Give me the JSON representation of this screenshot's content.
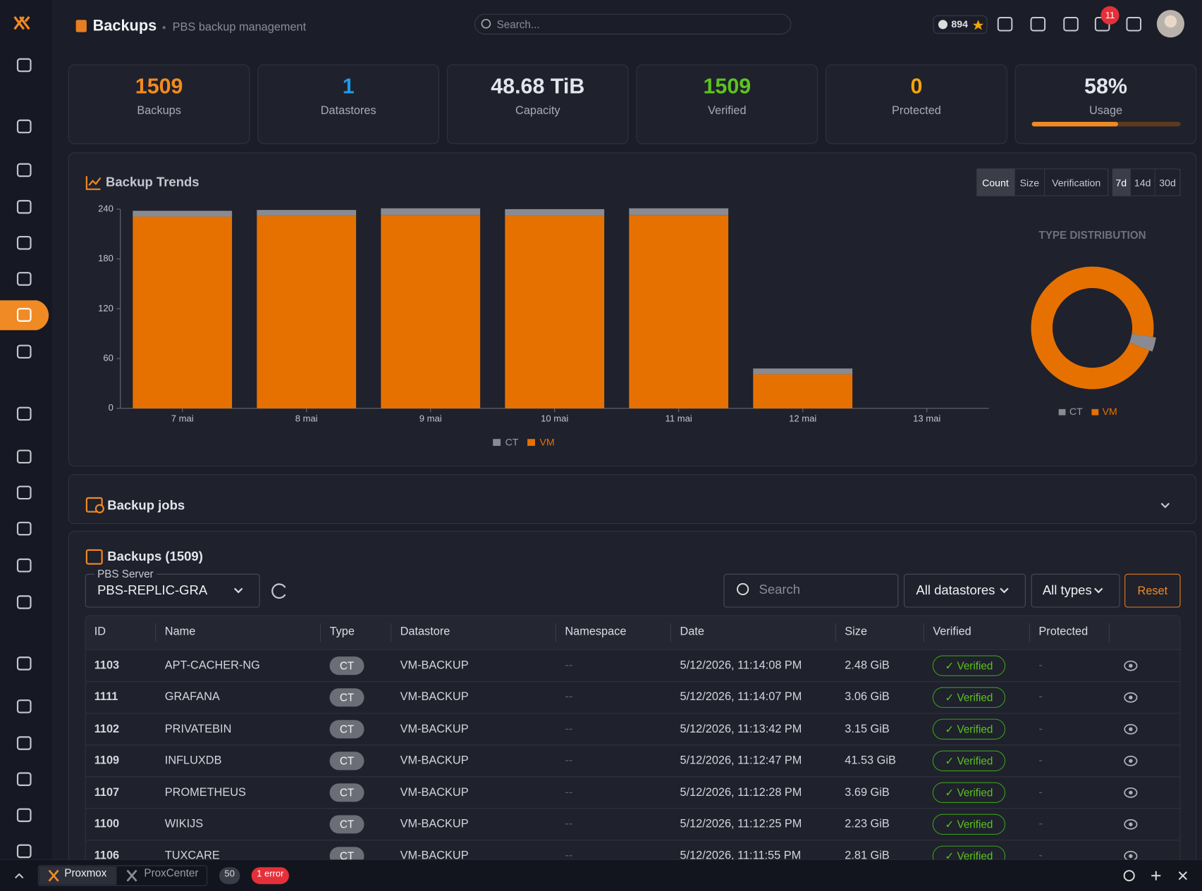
{
  "header": {
    "title": "Backups",
    "subtitle": "PBS backup management",
    "search_placeholder": "Search...",
    "github_stars": "894",
    "notifications": "11"
  },
  "stats": [
    {
      "value": "1509",
      "label": "Backups",
      "color": "#f28b1d"
    },
    {
      "value": "1",
      "label": "Datastores",
      "color": "#1e9be8"
    },
    {
      "value": "48.68 TiB",
      "label": "Capacity",
      "color": "#e4e4ec"
    },
    {
      "value": "1509",
      "label": "Verified",
      "color": "#5cc41e"
    },
    {
      "value": "0",
      "label": "Protected",
      "color": "#f5a50a"
    },
    {
      "value": 58,
      "value_label": "58%",
      "label": "Usage",
      "color": "#e4e4ec"
    }
  ],
  "trends_controls": {
    "metrics": [
      "Count",
      "Size",
      "Verification"
    ],
    "ranges": [
      "7d",
      "14d",
      "30d"
    ]
  },
  "chart_data": [
    {
      "type": "bar",
      "stacked": true,
      "title": "Backup Trends",
      "categories": [
        "7 mai",
        "8 mai",
        "9 mai",
        "10 mai",
        "11 mai",
        "12 mai",
        "13 mai"
      ],
      "series": [
        {
          "name": "CT",
          "color": "#8a8b92",
          "values": [
            7,
            7,
            8,
            8,
            8,
            7,
            0
          ]
        },
        {
          "name": "VM",
          "color": "#e67100",
          "values": [
            231,
            232,
            233,
            232,
            233,
            41,
            0
          ]
        }
      ],
      "ylim": [
        0,
        240
      ],
      "yticks": [
        0,
        60,
        120,
        180,
        240
      ],
      "grid": false
    },
    {
      "type": "pie",
      "donut": true,
      "title": "TYPE DISTRIBUTION",
      "categories": [
        "CT",
        "VM"
      ],
      "values": [
        45,
        1202
      ],
      "colors": [
        "#8a8b92",
        "#e67100"
      ]
    }
  ],
  "backup_jobs": {
    "title": "Backup jobs"
  },
  "backups": {
    "title": "Backups (1509)",
    "server_label": "PBS Server",
    "server": "PBS-REPLIC-GRA",
    "search_placeholder": "Search",
    "datastore_filter": "All datastores",
    "type_filter": "All types",
    "reset": "Reset",
    "columns": [
      "ID",
      "Name",
      "Type",
      "Datastore",
      "Namespace",
      "Date",
      "Size",
      "Verified",
      "Protected"
    ],
    "rows": [
      [
        "1103",
        "APT-CACHER-NG",
        "CT",
        "VM-BACKUP",
        "--",
        "5/12/2026, 11:14:08 PM",
        "2.48 GiB",
        "✓ Verified",
        "-"
      ],
      [
        "1111",
        "GRAFANA",
        "CT",
        "VM-BACKUP",
        "--",
        "5/12/2026, 11:14:07 PM",
        "3.06 GiB",
        "✓ Verified",
        "-"
      ],
      [
        "1102",
        "PRIVATEBIN",
        "CT",
        "VM-BACKUP",
        "--",
        "5/12/2026, 11:13:42 PM",
        "3.15 GiB",
        "✓ Verified",
        "-"
      ],
      [
        "1109",
        "INFLUXDB",
        "CT",
        "VM-BACKUP",
        "--",
        "5/12/2026, 11:12:47 PM",
        "41.53 GiB",
        "✓ Verified",
        "-"
      ],
      [
        "1107",
        "PROMETHEUS",
        "CT",
        "VM-BACKUP",
        "--",
        "5/12/2026, 11:12:28 PM",
        "3.69 GiB",
        "✓ Verified",
        "-"
      ],
      [
        "1100",
        "WIKIJS",
        "CT",
        "VM-BACKUP",
        "--",
        "5/12/2026, 11:12:25 PM",
        "2.23 GiB",
        "✓ Verified",
        "-"
      ],
      [
        "1106",
        "TUXCARE",
        "CT",
        "VM-BACKUP",
        "--",
        "5/12/2026, 11:11:55 PM",
        "2.81 GiB",
        "✓ Verified",
        "-"
      ]
    ]
  },
  "footer": {
    "tabs": [
      "Proxmox",
      "ProxCenter"
    ],
    "count": "50",
    "errors": "1 error"
  }
}
